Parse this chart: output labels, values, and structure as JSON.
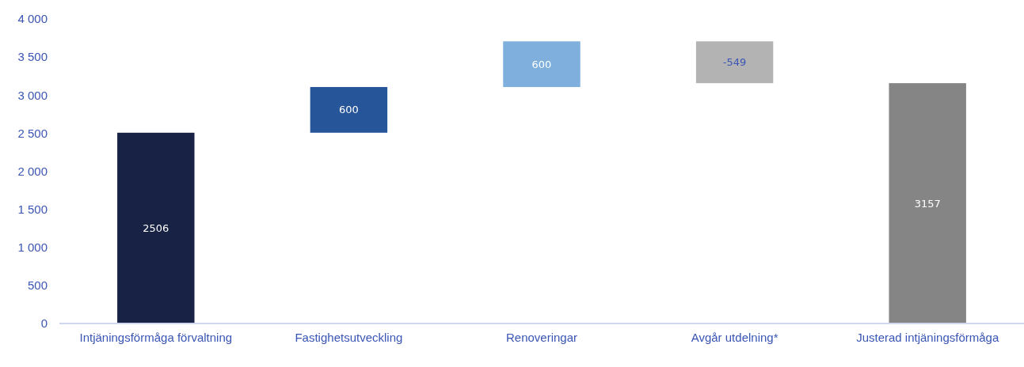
{
  "chart_data": {
    "type": "bar",
    "categories": [
      "Intjäningsförmåga förvaltning",
      "Fastighetsutveckling",
      "Renoveringar",
      "Avgår utdelning*",
      "Justerad intjäningsförmåga"
    ],
    "values": [
      2506,
      600,
      600,
      -549,
      3157
    ],
    "base": [
      0,
      2506,
      3106,
      3706,
      0
    ],
    "colors": [
      "#172244",
      "#27559a",
      "#7fb0dd",
      "#b3b3b3",
      "#858585"
    ],
    "data_labels": true,
    "ylim": [
      0,
      4000
    ],
    "yticks": [
      0,
      500,
      {
        "value": 1000,
        "label": "1 000"
      },
      {
        "value": 1500,
        "label": "1 500"
      },
      {
        "value": 2000,
        "label": "2 000"
      },
      {
        "value": 2500,
        "label": "2 500"
      },
      {
        "value": 3000,
        "label": "3 000"
      },
      {
        "value": 3500,
        "label": "3 500"
      },
      {
        "value": 4000,
        "label": "4 000"
      }
    ],
    "grid": false
  }
}
